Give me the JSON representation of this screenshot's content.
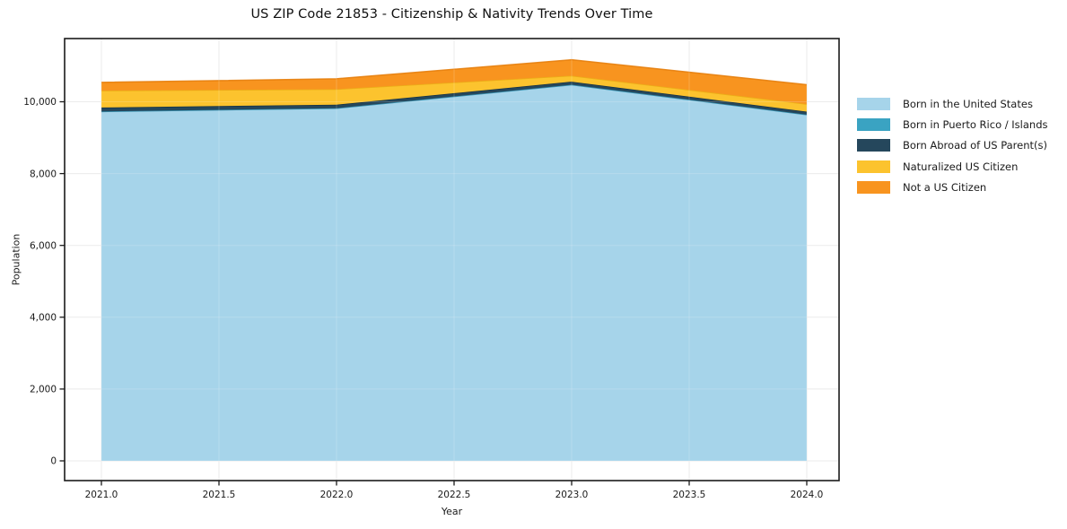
{
  "figure": {
    "title": "US ZIP Code 21853 - Citizenship & Nativity Trends Over Time"
  },
  "chart_data": {
    "type": "area",
    "stacked": true,
    "title": "US ZIP Code 21853 - Citizenship & Nativity Trends Over Time",
    "xlabel": "Year",
    "ylabel": "Population",
    "x": [
      2021,
      2022,
      2023,
      2024
    ],
    "series": [
      {
        "name": "Born in the United States",
        "color": "#a6d4ea",
        "edge": "#82bcd8",
        "values": [
          9730,
          9820,
          10475,
          9640
        ]
      },
      {
        "name": "Born in Puerto Rico / Islands",
        "color": "#3aa3c2",
        "edge": "#2f8fae",
        "values": [
          0,
          0,
          0,
          0
        ]
      },
      {
        "name": "Born Abroad of US Parent(s)",
        "color": "#25475c",
        "edge": "#16303f",
        "values": [
          110,
          100,
          85,
          85
        ]
      },
      {
        "name": "Naturalized US Citizen",
        "color": "#fcc32e",
        "edge": "#e9ab12",
        "values": [
          470,
          430,
          165,
          210
        ]
      },
      {
        "name": "Not a US Citizen",
        "color": "#f8941f",
        "edge": "#e67e0c",
        "values": [
          230,
          290,
          445,
          540
        ]
      }
    ],
    "totals": [
      10540,
      10640,
      11170,
      10475
    ],
    "xticks": {
      "values": [
        2021.0,
        2021.5,
        2022.0,
        2022.5,
        2023.0,
        2023.5,
        2024.0
      ],
      "labels": [
        "2021.0",
        "2021.5",
        "2022.0",
        "2022.5",
        "2023.0",
        "2023.5",
        "2024.0"
      ]
    },
    "yticks": {
      "values": [
        0,
        2000,
        4000,
        6000,
        8000,
        10000
      ],
      "labels": [
        "0",
        "2,000",
        "4,000",
        "6,000",
        "8,000",
        "10,000"
      ]
    },
    "xlim": [
      2020.84,
      2024.14
    ],
    "ylim": [
      -550,
      11775
    ],
    "grid": true,
    "legend_position": "outside-right",
    "colors": {
      "spine": "#1a1a1a",
      "grid": "#e7e7e7",
      "tick_label": "#1a1a1a",
      "background": "#ffffff"
    }
  }
}
